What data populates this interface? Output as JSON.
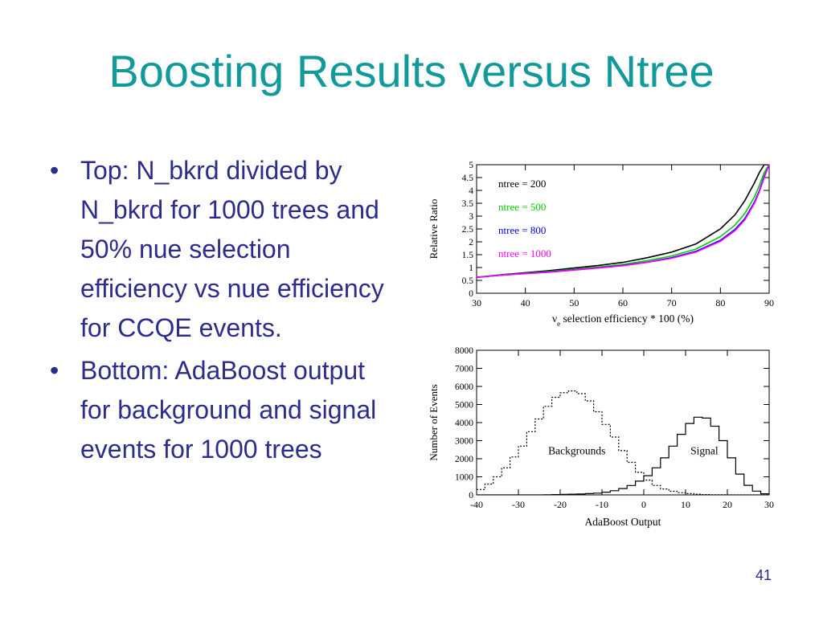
{
  "slide": {
    "title": "Boosting Results versus Ntree",
    "bullets": [
      "Top: N_bkrd divided by N_bkrd for 1000 trees and 50% nue selection efficiency vs nue efficiency for CCQE events.",
      "Bottom: AdaBoost output for background and signal events for 1000 trees"
    ],
    "bullet_glyph": "•",
    "page_number": "41"
  },
  "colors": {
    "title": "#12999a",
    "text": "#2c2c8c"
  },
  "chart_data": [
    {
      "type": "line",
      "title": "",
      "xlabel_prefix": "ν",
      "xlabel_sub": "e",
      "xlabel_suffix": " selection efficiency * 100 (%)",
      "ylabel": "Relative Ratio",
      "xlim": [
        30,
        90
      ],
      "ylim": [
        0,
        5
      ],
      "xticks": [
        30,
        40,
        50,
        60,
        70,
        80,
        90
      ],
      "yticks": [
        "0",
        "0.5",
        "1",
        "1.5",
        "2",
        "2.5",
        "3",
        "3.5",
        "4",
        "4.5",
        "5"
      ],
      "legend_position": "top-left",
      "x": [
        30,
        35,
        40,
        45,
        50,
        55,
        60,
        65,
        70,
        75,
        80,
        83,
        85,
        87,
        88,
        89,
        90
      ],
      "series": [
        {
          "name": "ntree = 200",
          "color": "#000000",
          "values": [
            0.62,
            0.72,
            0.8,
            0.88,
            0.98,
            1.08,
            1.2,
            1.38,
            1.6,
            1.92,
            2.5,
            3.05,
            3.6,
            4.3,
            4.7,
            5.0,
            5.0
          ]
        },
        {
          "name": "ntree = 500",
          "color": "#00cc00",
          "values": [
            0.62,
            0.71,
            0.78,
            0.85,
            0.93,
            1.02,
            1.12,
            1.27,
            1.45,
            1.72,
            2.2,
            2.65,
            3.1,
            3.75,
            4.2,
            4.7,
            5.0
          ]
        },
        {
          "name": "ntree = 800",
          "color": "#0000ee",
          "values": [
            0.62,
            0.7,
            0.77,
            0.83,
            0.91,
            0.99,
            1.08,
            1.21,
            1.38,
            1.63,
            2.06,
            2.48,
            2.9,
            3.55,
            4.0,
            4.55,
            5.0
          ]
        },
        {
          "name": "ntree = 1000",
          "color": "#ff00ff",
          "values": [
            0.62,
            0.7,
            0.76,
            0.82,
            0.9,
            0.98,
            1.07,
            1.2,
            1.36,
            1.6,
            2.02,
            2.43,
            2.85,
            3.5,
            3.95,
            4.5,
            5.0
          ]
        }
      ]
    },
    {
      "type": "line",
      "title": "",
      "xlabel": "AdaBoost Output",
      "ylabel": "Number of Events",
      "xlim": [
        -40,
        30
      ],
      "ylim": [
        0,
        8000
      ],
      "xticks": [
        -40,
        -30,
        -20,
        -10,
        0,
        10,
        20,
        30
      ],
      "yticks": [
        "0",
        "1000",
        "2000",
        "3000",
        "4000",
        "5000",
        "6000",
        "7000",
        "8000"
      ],
      "annotations": [
        {
          "text": "Backgrounds",
          "x": -16,
          "y": 2250
        },
        {
          "text": "Signal",
          "x": 14.5,
          "y": 2250
        }
      ],
      "x": [
        -40,
        -38,
        -36,
        -34,
        -32,
        -30,
        -28,
        -26,
        -24,
        -22,
        -20,
        -18,
        -16,
        -14,
        -12,
        -10,
        -8,
        -6,
        -4,
        -2,
        0,
        2,
        4,
        6,
        8,
        10,
        12,
        14,
        16,
        18,
        20,
        22,
        24,
        26,
        28,
        30
      ],
      "series": [
        {
          "name": "Backgrounds",
          "color": "#000000",
          "style": "dashed",
          "values": [
            300,
            600,
            1000,
            1500,
            2100,
            2700,
            3500,
            4200,
            4900,
            5400,
            5650,
            5750,
            5600,
            5200,
            4600,
            3900,
            3200,
            2450,
            1800,
            1250,
            820,
            520,
            330,
            200,
            120,
            70,
            40,
            20,
            10,
            5,
            2,
            0,
            0,
            0,
            0,
            0
          ]
        },
        {
          "name": "Signal",
          "color": "#000000",
          "style": "solid",
          "values": [
            0,
            0,
            0,
            0,
            0,
            0,
            0,
            0,
            10,
            20,
            30,
            40,
            50,
            70,
            100,
            150,
            230,
            350,
            520,
            760,
            1060,
            1500,
            2050,
            2700,
            3350,
            3950,
            4300,
            4250,
            3800,
            3000,
            2050,
            1150,
            530,
            210,
            60,
            10
          ]
        }
      ]
    }
  ]
}
